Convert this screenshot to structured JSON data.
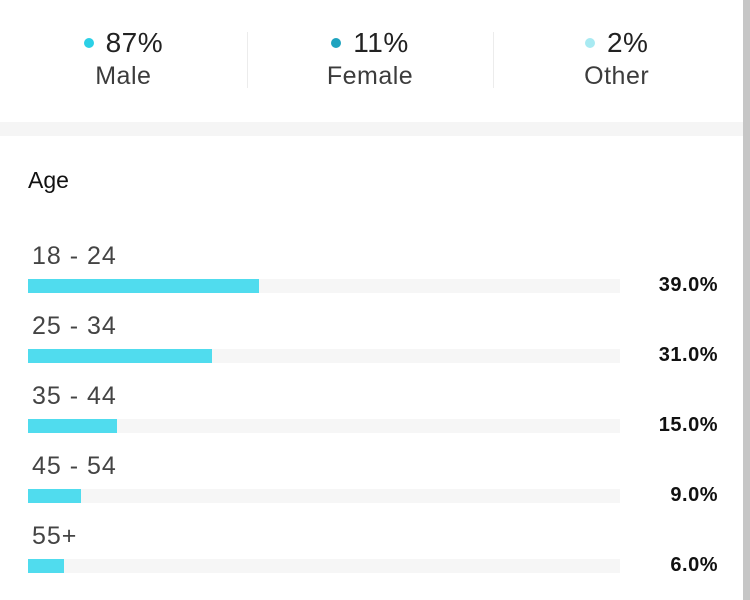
{
  "gender": {
    "items": [
      {
        "percent": "87%",
        "label": "Male",
        "color": "#2bd0e6"
      },
      {
        "percent": "11%",
        "label": "Female",
        "color": "#1ea3bf"
      },
      {
        "percent": "2%",
        "label": "Other",
        "color": "#a8eaf2"
      }
    ]
  },
  "age": {
    "title": "Age"
  },
  "chart_data": {
    "type": "bar",
    "orientation": "horizontal",
    "categories": [
      "18 - 24",
      "25 - 34",
      "35 - 44",
      "45 - 54",
      "55+"
    ],
    "values": [
      39.0,
      31.0,
      15.0,
      9.0,
      6.0
    ],
    "value_labels": [
      "39.0%",
      "31.0%",
      "15.0%",
      "9.0%",
      "6.0%"
    ],
    "title": "Age",
    "xlim": [
      0,
      100
    ],
    "bar_color": "#50dcee",
    "track_color": "#f6f6f6",
    "grid": false,
    "legend": "none"
  }
}
